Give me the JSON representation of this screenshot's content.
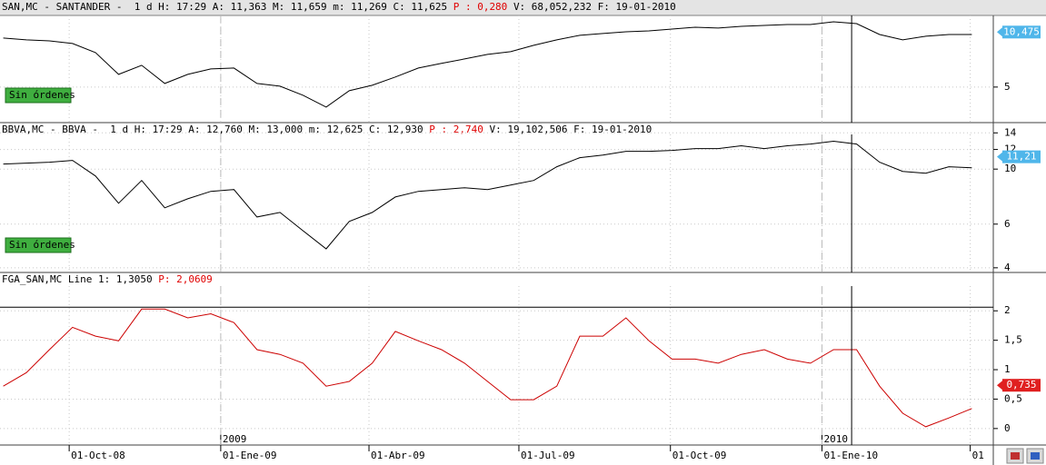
{
  "x_axis": {
    "x": [
      "2008-08-22",
      "2008-09-05",
      "2008-09-19",
      "2008-10-03",
      "2008-10-17",
      "2008-10-31",
      "2008-11-14",
      "2008-11-28",
      "2008-12-12",
      "2008-12-26",
      "2009-01-09",
      "2009-01-23",
      "2009-02-06",
      "2009-02-20",
      "2009-03-06",
      "2009-03-20",
      "2009-04-03",
      "2009-04-17",
      "2009-05-01",
      "2009-05-15",
      "2009-05-29",
      "2009-06-12",
      "2009-06-26",
      "2009-07-10",
      "2009-07-24",
      "2009-08-07",
      "2009-08-21",
      "2009-09-04",
      "2009-09-18",
      "2009-10-02",
      "2009-10-16",
      "2009-10-30",
      "2009-11-13",
      "2009-11-27",
      "2009-12-11",
      "2009-12-25",
      "2010-01-08",
      "2010-01-22",
      "2010-02-05",
      "2010-02-19",
      "2010-03-05",
      "2010-03-19",
      "2010-04-02"
    ],
    "xlim": [
      "2008-08-20",
      "2010-04-15"
    ],
    "xticks": [
      {
        "value": "2008-10-01",
        "label": "01-Oct-08"
      },
      {
        "value": "2009-01-01",
        "label": "01-Ene-09"
      },
      {
        "value": "2009-04-01",
        "label": "01-Abr-09"
      },
      {
        "value": "2009-07-01",
        "label": "01-Jul-09"
      },
      {
        "value": "2009-10-01",
        "label": "01-Oct-09"
      },
      {
        "value": "2010-01-01",
        "label": "01-Ene-10"
      },
      {
        "value": "2010-04-01",
        "label": "01"
      }
    ],
    "year_ticks": [
      {
        "value": "2009-01-01",
        "label": "2009"
      },
      {
        "value": "2010-01-01",
        "label": "2010"
      }
    ],
    "cursor": "2010-01-19"
  },
  "chart_data": [
    {
      "type": "line",
      "title": "SAN,MC - SANTANDER -  1 d H: 17:29 A: 11,363 M: 11,659 m: 11,269 C: 11,625",
      "title_highlight": "P : 0,280",
      "title_tail": "V: 68,052,232 F: 19-01-2010",
      "badge": "Sin órdenes",
      "color": "#000000",
      "log_scale": true,
      "grid": true,
      "ylim": [
        3.1,
        13.1
      ],
      "yticks": [
        5
      ],
      "last_value": {
        "value": 10.475,
        "label": "10,475"
      },
      "tag_color": "#4fb6ea",
      "values": [
        9.66,
        9.43,
        9.31,
        8.98,
        7.95,
        5.93,
        6.7,
        5.25,
        5.93,
        6.38,
        6.46,
        5.25,
        5.06,
        4.48,
        3.82,
        4.76,
        5.12,
        5.72,
        6.46,
        6.87,
        7.3,
        7.76,
        8.05,
        8.76,
        9.43,
        10.02,
        10.27,
        10.52,
        10.65,
        10.91,
        11.18,
        11.05,
        11.32,
        11.46,
        11.6,
        11.6,
        12.03,
        11.74,
        10.14,
        9.43,
        9.9,
        10.14,
        10.14
      ]
    },
    {
      "type": "line",
      "title": "BBVA,MC - BBVA -  1 d H: 17:29 A: 12,760 M: 13,000 m: 12,625 C: 12,930",
      "title_highlight": "P : 2,740",
      "title_tail": "V: 19,102,506 F: 19-01-2010",
      "badge": "Sin órdenes",
      "color": "#000000",
      "log_scale": true,
      "grid": true,
      "ylim": [
        3.83,
        13.8
      ],
      "yticks": [
        4,
        6,
        10,
        12,
        14
      ],
      "last_value": {
        "value": 11.21,
        "label": "11,21"
      },
      "tag_color": "#4fb6ea",
      "values": [
        10.48,
        10.57,
        10.66,
        10.84,
        9.38,
        7.28,
        9.0,
        6.98,
        7.59,
        8.13,
        8.27,
        6.41,
        6.69,
        5.64,
        4.77,
        6.15,
        6.69,
        7.72,
        8.13,
        8.27,
        8.41,
        8.27,
        8.62,
        9.0,
        10.22,
        11.12,
        11.4,
        11.8,
        11.8,
        11.9,
        12.1,
        12.1,
        12.42,
        12.1,
        12.42,
        12.62,
        12.95,
        12.62,
        10.66,
        9.79,
        9.63,
        10.22,
        10.13
      ]
    },
    {
      "type": "line",
      "title": "FGA_SAN,MC Line 1: 1,3050",
      "title_highlight": "P: 2,0609",
      "color": "#cc0000",
      "log_scale": false,
      "grid": true,
      "ylim": [
        -0.28,
        2.42
      ],
      "yticks": [
        0,
        {
          "value": 0.5,
          "label": "0,5"
        },
        1,
        {
          "value": 1.5,
          "label": "1,5"
        },
        2
      ],
      "hline": 2.0609,
      "last_value": {
        "value": 0.735,
        "label": "0,735"
      },
      "tag_color": "#e02020",
      "values": [
        0.72,
        0.95,
        1.34,
        1.72,
        1.57,
        1.49,
        2.03,
        2.03,
        1.88,
        1.95,
        1.8,
        1.34,
        1.26,
        1.11,
        0.72,
        0.8,
        1.11,
        1.65,
        1.49,
        1.34,
        1.11,
        0.8,
        0.49,
        0.49,
        0.72,
        1.57,
        1.57,
        1.88,
        1.49,
        1.18,
        1.18,
        1.11,
        1.26,
        1.34,
        1.18,
        1.11,
        1.34,
        1.34,
        0.72,
        0.26,
        0.03,
        0.18,
        0.34
      ]
    }
  ]
}
